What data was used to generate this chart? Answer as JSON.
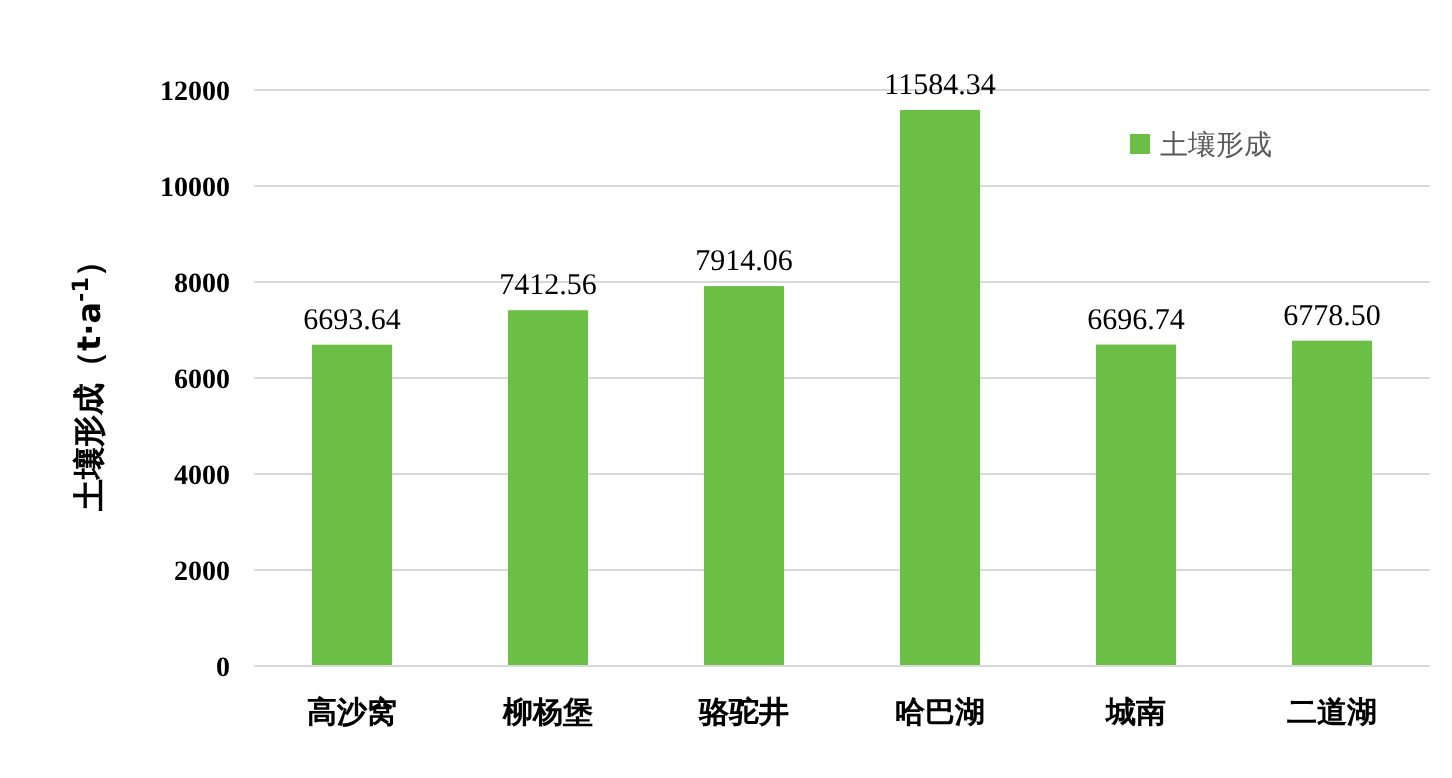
{
  "chart_data": {
    "type": "bar",
    "ylabel": "土壤形成（t·a$^{-1}$）",
    "categories": [
      "高沙窝",
      "柳杨堡",
      "骆驼井",
      "哈巴湖",
      "城南",
      "二道湖"
    ],
    "series": [
      {
        "name": "土壤形成",
        "color": "#6cbf45",
        "values": [
          6693.64,
          7412.56,
          7914.06,
          11584.34,
          6696.74,
          6778.5
        ],
        "value_labels": [
          "6693.64",
          "7412.56",
          "7914.06",
          "11584.34",
          "6696.74",
          "6778.50"
        ]
      }
    ],
    "ylim": [
      0,
      12000
    ],
    "yticks": [
      0,
      2000,
      4000,
      6000,
      8000,
      10000,
      12000
    ],
    "grid": "y",
    "legend": "top right"
  }
}
